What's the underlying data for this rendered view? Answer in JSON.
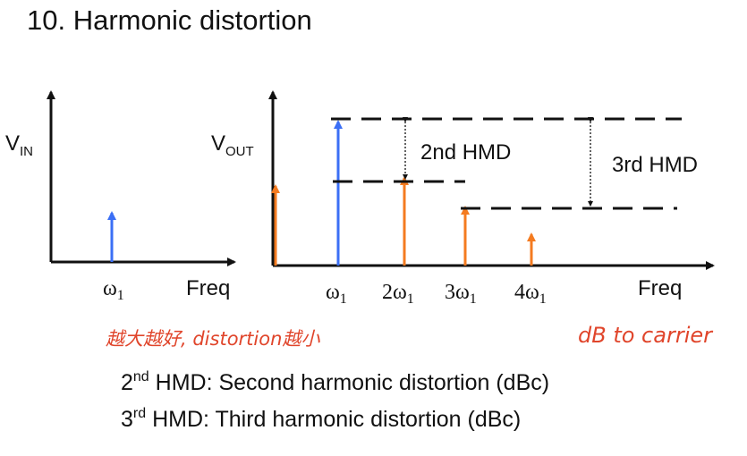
{
  "title": "10. Harmonic distortion",
  "input_plot": {
    "y_label": {
      "main": "V",
      "sub": "IN"
    },
    "x_label": "Freq",
    "tone": {
      "main": "ω",
      "sub": "1"
    }
  },
  "output_plot": {
    "y_label": {
      "main": "V",
      "sub": "OUT"
    },
    "x_label": "Freq",
    "tones": [
      {
        "main": "ω",
        "sub": "1"
      },
      {
        "coef": "2",
        "main": "ω",
        "sub": "1"
      },
      {
        "coef": "3",
        "main": "ω",
        "sub": "1"
      },
      {
        "coef": "4",
        "main": "ω",
        "sub": "1"
      }
    ],
    "annotations": [
      "2nd HMD",
      "3rd HMD"
    ]
  },
  "handwritten_notes": [
    "越大越好, distortion越小",
    "dB to carrier"
  ],
  "definitions": [
    {
      "num": "2",
      "sup": "nd",
      "text": " HMD: Second harmonic distortion (dBc)"
    },
    {
      "num": "3",
      "sup": "rd",
      "text": " HMD: Third harmonic distortion (dBc)"
    }
  ]
}
